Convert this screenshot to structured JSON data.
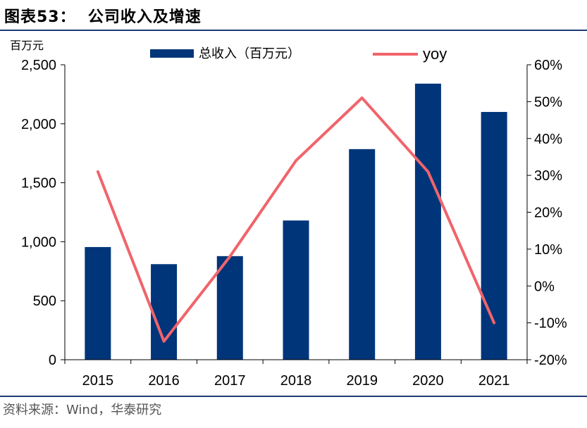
{
  "header": {
    "title": "图表53：  公司收入及增速"
  },
  "source": "资料来源：Wind，华泰研究",
  "colors": {
    "bar": "#00357a",
    "line": "#f0646b",
    "rule": "#1f3b73"
  },
  "chart_data": {
    "type": "bar+line",
    "categories": [
      "2015",
      "2016",
      "2017",
      "2018",
      "2019",
      "2020",
      "2021"
    ],
    "series": [
      {
        "name": "总收入（百万元）",
        "axis": "left",
        "type": "bar",
        "values": [
          955,
          810,
          878,
          1180,
          1785,
          2340,
          2100
        ]
      },
      {
        "name": "yoy",
        "axis": "right",
        "type": "line",
        "values": [
          0.31,
          -0.15,
          0.08,
          0.34,
          0.51,
          0.31,
          -0.1
        ]
      }
    ],
    "left_axis": {
      "unit_label": "百万元",
      "ylim": [
        0,
        2500
      ],
      "ticks": [
        0,
        500,
        1000,
        1500,
        2000,
        2500
      ],
      "tick_labels": [
        "0",
        "500",
        "1,000",
        "1,500",
        "2,000",
        "2,500"
      ]
    },
    "right_axis": {
      "ylim": [
        -0.2,
        0.6
      ],
      "ticks": [
        -0.2,
        -0.1,
        0,
        0.1,
        0.2,
        0.3,
        0.4,
        0.5,
        0.6
      ],
      "tick_labels": [
        "-20%",
        "-10%",
        "0%",
        "10%",
        "20%",
        "30%",
        "40%",
        "50%",
        "60%"
      ]
    },
    "legend": "top-center",
    "grid": false
  }
}
